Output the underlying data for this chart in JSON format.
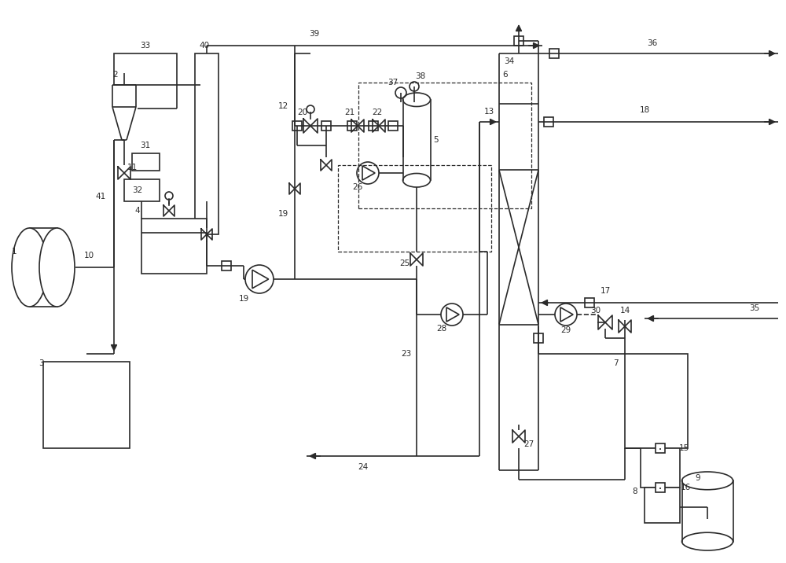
{
  "bg": "#ffffff",
  "lc": "#2a2a2a",
  "lw": 1.2,
  "fs": 7.5,
  "figsize": [
    10.0,
    7.16
  ],
  "dpi": 100
}
